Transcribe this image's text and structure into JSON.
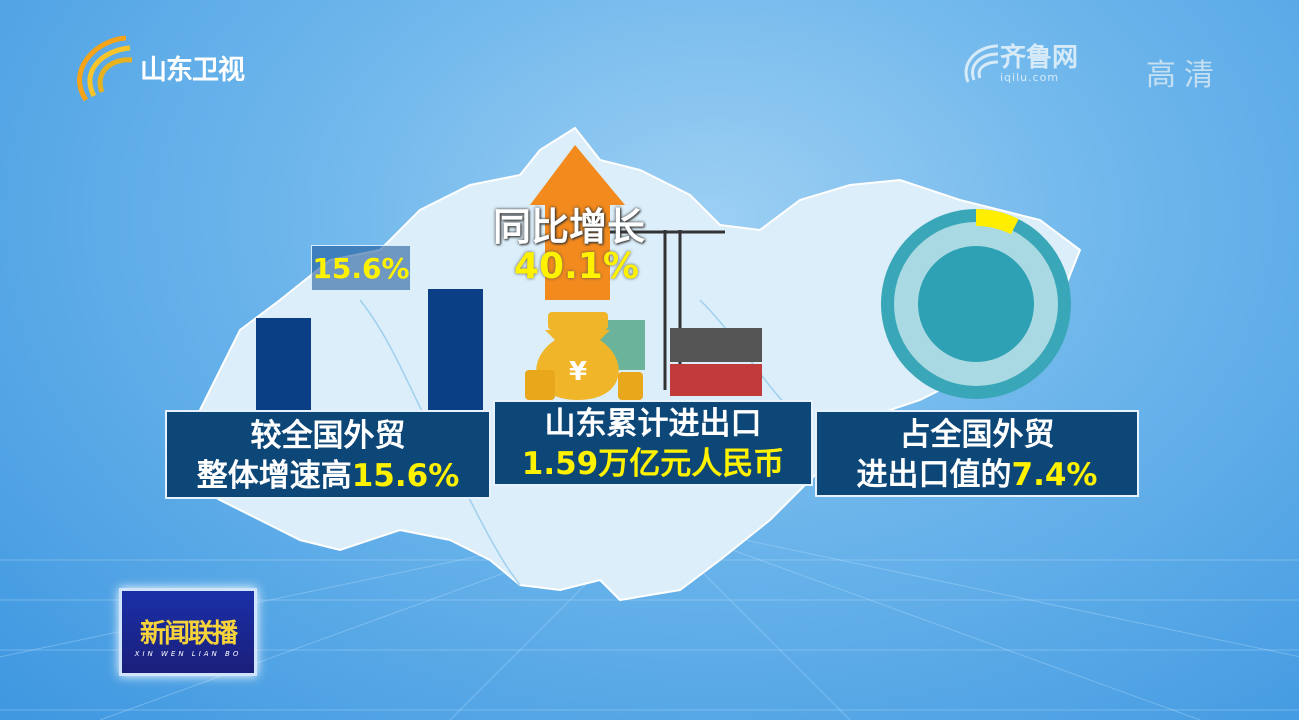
{
  "channel": {
    "name": "山东卫视",
    "icon": "shandong-tv-logo"
  },
  "partner": {
    "name": "齐鲁网",
    "url": "iqilu.com",
    "quality": "高清"
  },
  "bars": {
    "difference_label": "15.6%"
  },
  "growth": {
    "label": "同比增长",
    "value": "40.1%",
    "icon": "up-arrow-icon"
  },
  "boxes": [
    {
      "line1": "较全国外贸",
      "line2_prefix": "整体增速高",
      "line2_value": "15.6%"
    },
    {
      "line1": "山东累计进出口",
      "line2_value": "1.59万亿元人民币"
    },
    {
      "line1": "占全国外贸",
      "line2_prefix": "进出口值的",
      "line2_value": "7.4%"
    }
  ],
  "donut": {
    "share_percent": 7.4
  },
  "program": {
    "title": "新闻联播",
    "subtitle": "XIN WEN LIAN BO"
  },
  "colors": {
    "bar": "#0a3f86",
    "box": "#0d4777",
    "highlight": "#fff200",
    "donut": "#3aa7b9"
  }
}
